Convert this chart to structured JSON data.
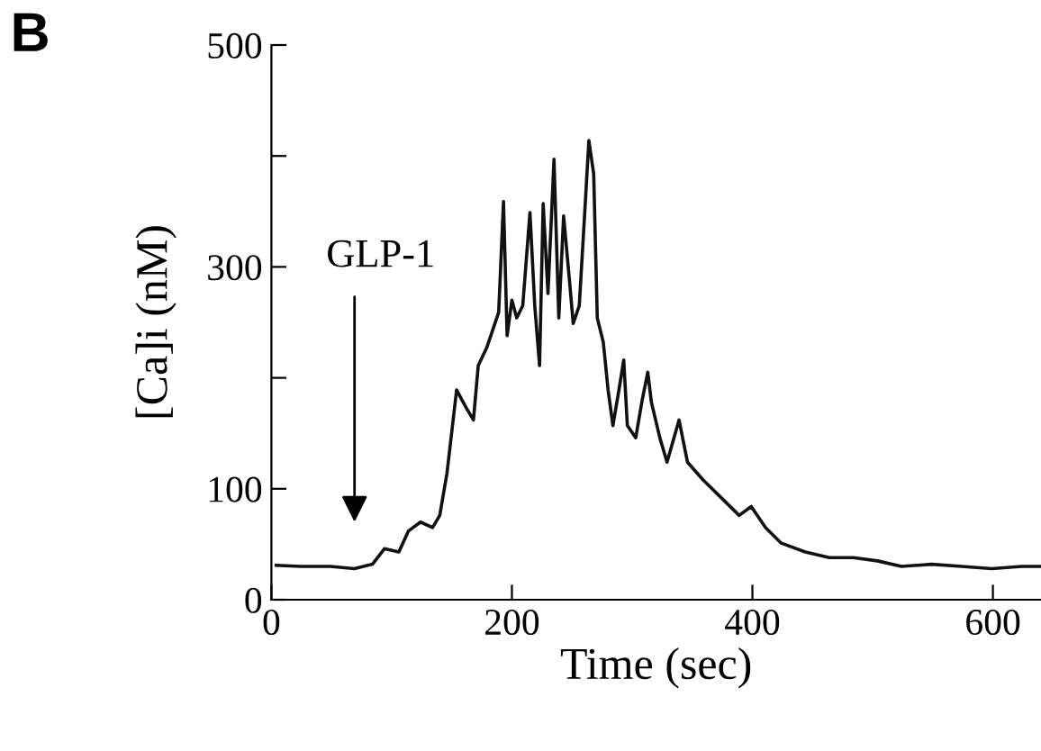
{
  "chart_data": {
    "type": "line",
    "title": "B",
    "xlabel": "Time (sec)",
    "ylabel": "[Ca]i (nM)",
    "x": [
      4,
      24,
      49,
      69,
      84,
      94,
      106,
      114,
      124,
      134,
      140,
      146,
      154,
      162,
      168,
      172,
      179,
      184,
      189,
      193,
      196,
      200,
      204,
      209,
      215,
      219,
      223,
      226,
      230,
      235,
      239,
      243,
      248,
      251,
      256,
      261,
      264,
      268,
      271,
      276,
      280,
      284,
      289,
      293,
      296,
      303,
      308,
      313,
      316,
      323,
      329,
      339,
      346,
      359,
      374,
      389,
      399,
      411,
      424,
      444,
      464,
      484,
      504,
      524,
      549,
      574,
      599,
      624,
      639
    ],
    "series": [
      {
        "color": "#111111",
        "values": [
          31,
          30,
          30,
          28,
          32,
          46,
          43,
          62,
          70,
          65,
          76,
          114,
          189,
          173,
          162,
          211,
          227,
          243,
          259,
          359,
          238,
          270,
          254,
          265,
          349,
          265,
          211,
          357,
          276,
          397,
          254,
          346,
          286,
          249,
          265,
          357,
          414,
          384,
          254,
          232,
          189,
          157,
          189,
          216,
          157,
          146,
          178,
          205,
          178,
          146,
          124,
          162,
          124,
          108,
          92,
          76,
          84,
          65,
          51,
          43,
          38,
          38,
          35,
          30,
          32,
          30,
          28,
          30,
          30
        ]
      }
    ],
    "xlim": [
      0,
      640
    ],
    "ylim": [
      0,
      500
    ],
    "xticks": [
      0,
      200,
      400,
      600
    ],
    "yticks": [
      0,
      100,
      {
        "value": 200,
        "label": null
      },
      300,
      {
        "value": 400,
        "label": null
      },
      500
    ],
    "annotations": [
      "GLP-1"
    ],
    "grid": false,
    "legend": false,
    "marker": "none",
    "line_style": "solid"
  }
}
